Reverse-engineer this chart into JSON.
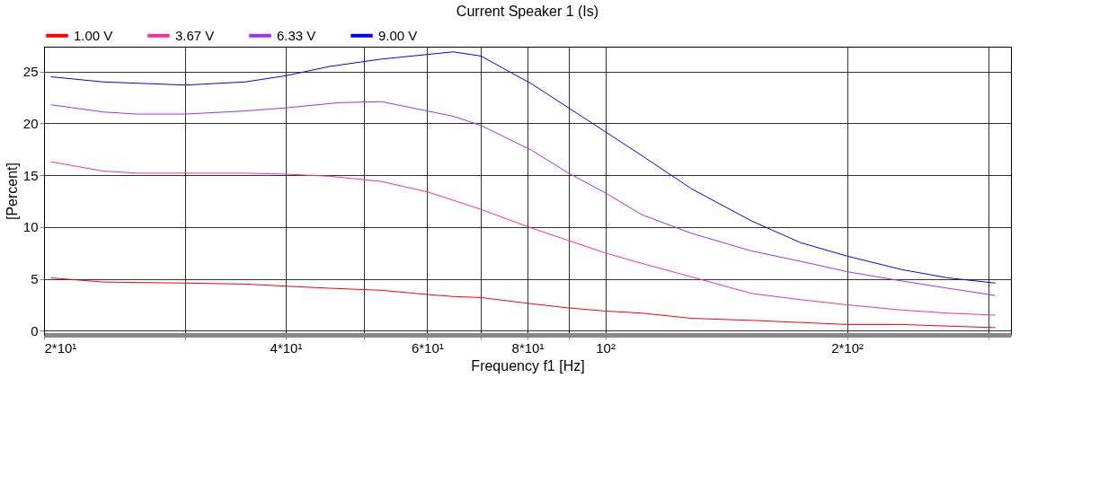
{
  "chart_data": {
    "type": "line",
    "title": "Current Speaker 1 (Is)",
    "xlabel": "Frequency f1  [Hz]",
    "ylabel": "[Percent]",
    "log": "x",
    "xlim": [
      20,
      320
    ],
    "xticks": [
      {
        "value": 20,
        "label": "2*10¹"
      },
      {
        "value": 30,
        "label": null
      },
      {
        "value": 40,
        "label": "4*10¹"
      },
      {
        "value": 50,
        "label": null
      },
      {
        "value": 60,
        "label": "6*10¹"
      },
      {
        "value": 70,
        "label": null
      },
      {
        "value": 80,
        "label": "8*10¹"
      },
      {
        "value": 90,
        "label": null
      },
      {
        "value": 100,
        "label": "10²"
      },
      {
        "value": 200,
        "label": "2*10²"
      },
      {
        "value": 300,
        "label": null
      }
    ],
    "ylim": [
      -0.4,
      27.4
    ],
    "yticks": [
      0,
      5,
      10,
      15,
      20,
      25
    ],
    "grid": true,
    "legend": "top",
    "line_style": "solid",
    "marker": "none",
    "series": [
      {
        "name": "1.00 V",
        "color": "#ff0000",
        "x": [
          20.4,
          23.7,
          30,
          35.6,
          40,
          45.4,
          52.6,
          60,
          64.6,
          70,
          81,
          90,
          100,
          111,
          128,
          152,
          175,
          200,
          234,
          267,
          306
        ],
        "values": [
          5.1,
          4.7,
          4.6,
          4.5,
          4.3,
          4.1,
          3.9,
          3.5,
          3.3,
          3.2,
          2.6,
          2.2,
          1.9,
          1.7,
          1.2,
          1.0,
          0.8,
          0.6,
          0.6,
          0.45,
          0.3
        ]
      },
      {
        "name": "3.67 V",
        "color": "#ff2a9a",
        "x": [
          20.4,
          23.7,
          26.1,
          30,
          35.6,
          40,
          45.4,
          52.6,
          60,
          64.6,
          70,
          81,
          90,
          100,
          111,
          128,
          152,
          175,
          200,
          234,
          267,
          306
        ],
        "values": [
          16.3,
          15.4,
          15.2,
          15.2,
          15.2,
          15.1,
          14.9,
          14.4,
          13.4,
          12.6,
          11.7,
          9.9,
          8.7,
          7.5,
          6.5,
          5.2,
          3.6,
          3.0,
          2.5,
          2.0,
          1.7,
          1.5
        ]
      },
      {
        "name": "6.33 V",
        "color": "#a030f0",
        "x": [
          20.4,
          23.7,
          26.1,
          30,
          35.6,
          40,
          46.6,
          52.6,
          64.6,
          70,
          81,
          90,
          100,
          111,
          128,
          152,
          175,
          200,
          234,
          267,
          306
        ],
        "values": [
          21.8,
          21.1,
          20.9,
          20.9,
          21.2,
          21.5,
          22.0,
          22.1,
          20.7,
          19.8,
          17.4,
          15.2,
          13.3,
          11.2,
          9.4,
          7.7,
          6.7,
          5.7,
          4.8,
          4.1,
          3.4
        ]
      },
      {
        "name": "9.00 V",
        "color": "#0000ff",
        "x": [
          20.4,
          23.7,
          30,
          35.6,
          40,
          45.4,
          52.6,
          64.6,
          70,
          81,
          90,
          100,
          111,
          128,
          152,
          175,
          200,
          234,
          267,
          306
        ],
        "values": [
          24.5,
          24.0,
          23.7,
          24.0,
          24.6,
          25.5,
          26.2,
          26.9,
          26.5,
          23.8,
          21.5,
          19.2,
          16.9,
          13.7,
          10.6,
          8.5,
          7.2,
          5.9,
          5.1,
          4.6
        ]
      }
    ]
  }
}
